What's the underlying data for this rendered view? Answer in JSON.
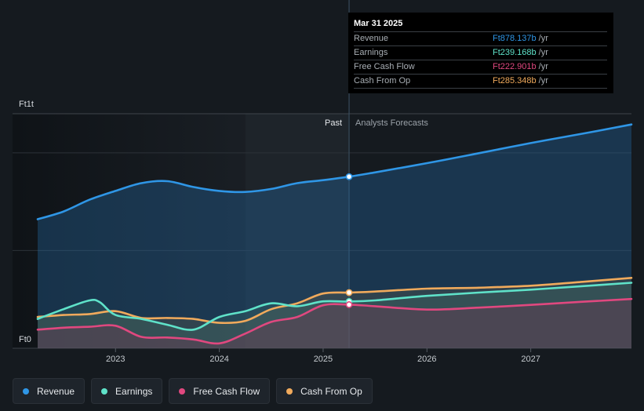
{
  "tooltip": {
    "date": "Mar 31 2025",
    "rows": [
      {
        "label": "Revenue",
        "value": "Ft878.137b",
        "unit": "/yr",
        "color": "#2f96e6"
      },
      {
        "label": "Earnings",
        "value": "Ft239.168b",
        "unit": "/yr",
        "color": "#5fe2c9"
      },
      {
        "label": "Free Cash Flow",
        "value": "Ft222.901b",
        "unit": "/yr",
        "color": "#e0487f"
      },
      {
        "label": "Cash From Op",
        "value": "Ft285.348b",
        "unit": "/yr",
        "color": "#f0aa5c"
      }
    ]
  },
  "legend": [
    {
      "label": "Revenue",
      "color": "#2f96e6"
    },
    {
      "label": "Earnings",
      "color": "#5fe2c9"
    },
    {
      "label": "Free Cash Flow",
      "color": "#e0487f"
    },
    {
      "label": "Cash From Op",
      "color": "#f0aa5c"
    }
  ],
  "chart_data": {
    "type": "area",
    "title": "",
    "xlabel": "",
    "ylabel": "",
    "currency": "Ft",
    "y_tick_labels": [
      "Ft0",
      "Ft1t"
    ],
    "ylim": [
      0,
      1200
    ],
    "xlim": [
      2022.25,
      2027.97
    ],
    "x_tick_labels": [
      "2023",
      "2024",
      "2025",
      "2026",
      "2027"
    ],
    "x_ticks": [
      2023,
      2024,
      2025,
      2026,
      2027
    ],
    "divider_x": 2025.25,
    "highlight_start_x": 2024.25,
    "past_label": "Past",
    "forecast_label": "Analysts Forecasts",
    "series": [
      {
        "name": "Revenue",
        "color": "#2f96e6",
        "x": [
          2022.25,
          2022.5,
          2022.75,
          2023.0,
          2023.25,
          2023.5,
          2023.75,
          2024.0,
          2024.25,
          2024.5,
          2024.75,
          2025.0,
          2025.25,
          2025.5,
          2026.0,
          2026.5,
          2027.0,
          2027.5,
          2027.97
        ],
        "y": [
          660,
          700,
          760,
          805,
          845,
          855,
          825,
          805,
          800,
          815,
          845,
          860,
          878,
          900,
          947,
          998,
          1050,
          1098,
          1145
        ]
      },
      {
        "name": "Earnings",
        "color": "#5fe2c9",
        "x": [
          2022.25,
          2022.5,
          2022.75,
          2022.85,
          2023.0,
          2023.25,
          2023.5,
          2023.75,
          2024.0,
          2024.25,
          2024.5,
          2024.75,
          2025.0,
          2025.25,
          2025.5,
          2026.0,
          2026.5,
          2027.0,
          2027.5,
          2027.97
        ],
        "y": [
          150,
          200,
          245,
          235,
          170,
          150,
          120,
          95,
          160,
          190,
          230,
          215,
          240,
          239,
          245,
          268,
          285,
          300,
          318,
          335
        ]
      },
      {
        "name": "Free Cash Flow",
        "color": "#e0487f",
        "x": [
          2022.25,
          2022.5,
          2022.75,
          2023.0,
          2023.25,
          2023.5,
          2023.75,
          2024.0,
          2024.25,
          2024.5,
          2024.75,
          2025.0,
          2025.25,
          2025.5,
          2026.0,
          2026.5,
          2027.0,
          2027.5,
          2027.97
        ],
        "y": [
          95,
          105,
          110,
          115,
          58,
          55,
          45,
          25,
          75,
          135,
          160,
          220,
          223,
          215,
          198,
          208,
          222,
          238,
          252
        ]
      },
      {
        "name": "Cash From Op",
        "color": "#f0aa5c",
        "x": [
          2022.25,
          2022.5,
          2022.75,
          2023.0,
          2023.25,
          2023.5,
          2023.75,
          2024.0,
          2024.25,
          2024.5,
          2024.75,
          2025.0,
          2025.25,
          2025.5,
          2026.0,
          2026.5,
          2027.0,
          2027.5,
          2027.97
        ],
        "y": [
          160,
          170,
          175,
          190,
          155,
          155,
          150,
          130,
          140,
          200,
          230,
          280,
          285,
          290,
          305,
          310,
          320,
          340,
          360
        ]
      }
    ],
    "markers": [
      {
        "series": "Revenue",
        "x": 2025.25,
        "y": 878
      },
      {
        "series": "Cash From Op",
        "x": 2025.25,
        "y": 285
      },
      {
        "series": "Earnings",
        "x": 2025.25,
        "y": 239
      },
      {
        "series": "Free Cash Flow",
        "x": 2025.25,
        "y": 223
      }
    ]
  }
}
